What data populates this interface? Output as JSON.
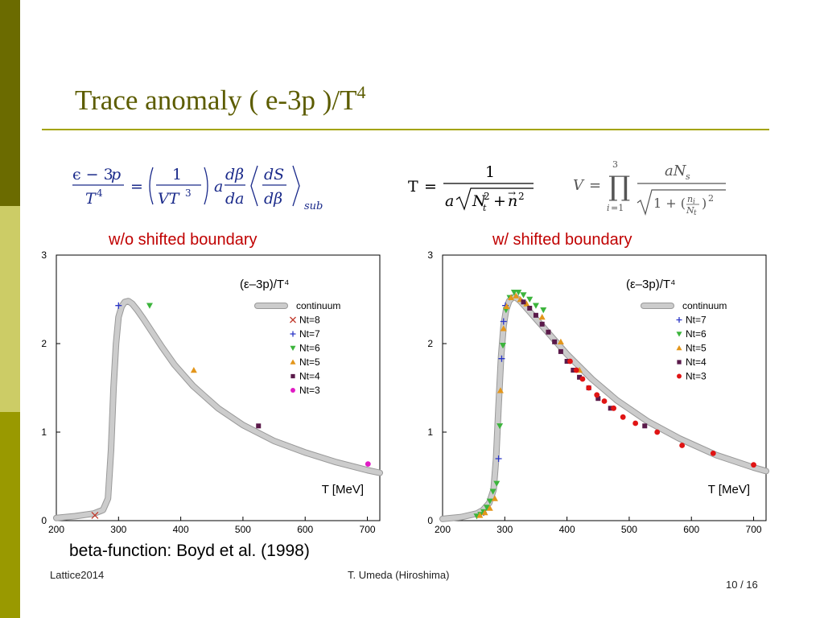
{
  "slide": {
    "title_main": "Trace anomaly ( e-3p )/T",
    "title_sup": "4",
    "caption": "beta-function: Boyd et al. (1998)",
    "footer_left": "Lattice2014",
    "footer_center": "T. Umeda (Hiroshima)",
    "footer_right": "10 / 16"
  },
  "colors": {
    "accent": "#6b6b00",
    "title": "#5c5c00",
    "plot_title": "#c00000",
    "curve": "#cccccc"
  },
  "chart_data": [
    {
      "type": "scatter",
      "plot_title": "w/o shifted boundary",
      "legend_title": "(ε–3p)/T⁴",
      "legend_placement": "top-right",
      "xlabel": "T [MeV]",
      "xlim": [
        200,
        720
      ],
      "ylim": [
        0,
        3
      ],
      "xticks": [
        200,
        300,
        400,
        500,
        600,
        700
      ],
      "yticks": [
        0,
        1,
        2,
        3
      ],
      "curve": {
        "name": "continuum",
        "x": [
          200,
          230,
          260,
          275,
          283,
          288,
          292,
          296,
          300,
          305,
          310,
          316,
          322,
          330,
          340,
          355,
          370,
          390,
          420,
          460,
          500,
          550,
          600,
          650,
          700,
          720
        ],
        "y": [
          0.03,
          0.05,
          0.08,
          0.12,
          0.25,
          0.8,
          1.5,
          2.0,
          2.3,
          2.42,
          2.47,
          2.48,
          2.45,
          2.38,
          2.28,
          2.12,
          1.96,
          1.76,
          1.52,
          1.27,
          1.08,
          0.9,
          0.77,
          0.66,
          0.57,
          0.54
        ]
      },
      "series": [
        {
          "name": "Nt=8",
          "marker": "x",
          "color": "#c0392b",
          "x": [
            262
          ],
          "y": [
            0.06
          ]
        },
        {
          "name": "Nt=7",
          "marker": "+",
          "color": "#2b36c7",
          "x": [
            300
          ],
          "y": [
            2.43
          ]
        },
        {
          "name": "Nt=6",
          "marker": "tri-down",
          "color": "#3cb43c",
          "x": [
            350
          ],
          "y": [
            2.43
          ]
        },
        {
          "name": "Nt=5",
          "marker": "tri-up",
          "color": "#e3961b",
          "x": [
            421
          ],
          "y": [
            1.7
          ]
        },
        {
          "name": "Nt=4",
          "marker": "square",
          "color": "#5a1a4a",
          "x": [
            525
          ],
          "y": [
            1.07
          ]
        },
        {
          "name": "Nt=3",
          "marker": "circle",
          "color": "#e01cc4",
          "x": [
            701
          ],
          "y": [
            0.64
          ]
        }
      ]
    },
    {
      "type": "scatter",
      "plot_title": "w/  shifted boundary",
      "legend_title": "(ε–3p)/T⁴",
      "legend_placement": "top-right",
      "xlabel": "T [MeV]",
      "xlim": [
        200,
        720
      ],
      "ylim": [
        0,
        3
      ],
      "xticks": [
        200,
        300,
        400,
        500,
        600,
        700
      ],
      "yticks": [
        0,
        1,
        2,
        3
      ],
      "curve": {
        "name": "continuum",
        "x": [
          200,
          230,
          255,
          265,
          275,
          282,
          286,
          290,
          294,
          298,
          302,
          307,
          312,
          318,
          325,
          335,
          350,
          370,
          400,
          440,
          480,
          530,
          580,
          640,
          700,
          720
        ],
        "y": [
          0.02,
          0.04,
          0.08,
          0.12,
          0.2,
          0.35,
          0.7,
          1.3,
          1.85,
          2.2,
          2.38,
          2.48,
          2.52,
          2.52,
          2.48,
          2.4,
          2.28,
          2.12,
          1.88,
          1.6,
          1.36,
          1.12,
          0.93,
          0.74,
          0.6,
          0.56
        ]
      },
      "series": [
        {
          "name": "Nt=7",
          "marker": "+",
          "color": "#2b36c7",
          "x": [
            266,
            290,
            295,
            298,
            301
          ],
          "y": [
            0.09,
            0.7,
            1.83,
            2.25,
            2.43
          ]
        },
        {
          "name": "Nt=6",
          "marker": "tri-down",
          "color": "#3cb43c",
          "x": [
            255,
            261,
            266,
            271,
            276,
            281,
            287,
            292,
            297,
            302,
            308,
            315,
            322,
            330,
            340,
            350,
            362
          ],
          "y": [
            0.05,
            0.07,
            0.1,
            0.15,
            0.22,
            0.33,
            0.42,
            1.07,
            1.98,
            2.38,
            2.52,
            2.58,
            2.58,
            2.55,
            2.5,
            2.43,
            2.38
          ]
        },
        {
          "name": "Nt=5",
          "marker": "tri-up",
          "color": "#e3961b",
          "x": [
            260,
            268,
            276,
            284,
            293,
            298,
            303,
            310,
            318,
            325,
            335,
            360,
            390,
            420
          ],
          "y": [
            0.06,
            0.09,
            0.14,
            0.25,
            1.47,
            2.17,
            2.42,
            2.52,
            2.54,
            2.5,
            2.45,
            2.3,
            2.02,
            1.7
          ]
        },
        {
          "name": "Nt=4",
          "marker": "square",
          "color": "#5a1a4a",
          "x": [
            330,
            340,
            350,
            360,
            370,
            380,
            390,
            400,
            410,
            420,
            435,
            450,
            470,
            525
          ],
          "y": [
            2.47,
            2.4,
            2.32,
            2.22,
            2.13,
            2.02,
            1.91,
            1.8,
            1.7,
            1.62,
            1.5,
            1.38,
            1.27,
            1.07
          ]
        },
        {
          "name": "Nt=3",
          "marker": "circle",
          "color": "#e01414",
          "x": [
            405,
            415,
            425,
            435,
            448,
            460,
            475,
            490,
            510,
            545,
            585,
            635,
            700
          ],
          "y": [
            1.8,
            1.7,
            1.6,
            1.5,
            1.42,
            1.35,
            1.27,
            1.17,
            1.1,
            1.0,
            0.85,
            0.76,
            0.63
          ]
        }
      ]
    }
  ]
}
